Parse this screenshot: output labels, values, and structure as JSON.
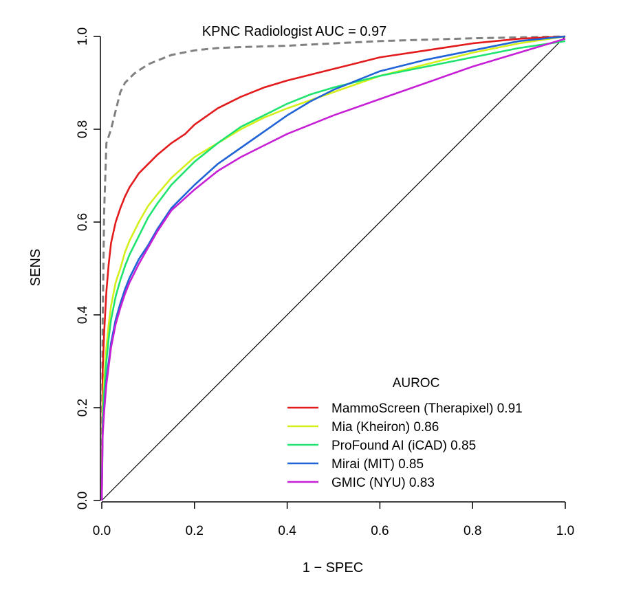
{
  "chart_data": {
    "type": "line",
    "title": "",
    "xlabel": "1 − SPEC",
    "ylabel": "SENS",
    "xlim": [
      0,
      1
    ],
    "ylim": [
      0,
      1
    ],
    "xticks": [
      "0.0",
      "0.2",
      "0.4",
      "0.6",
      "0.8",
      "1.0"
    ],
    "yticks": [
      "0.0",
      "0.2",
      "0.4",
      "0.6",
      "0.8",
      "1.0"
    ],
    "grid": false,
    "legend": {
      "title": "AUROC",
      "placement": "bottom-right"
    },
    "annotation": "KPNC Radiologist AUC = 0.97",
    "reference": {
      "style": "dashed",
      "color": "#808080",
      "x": [
        0,
        0.002,
        0.005,
        0.01,
        0.02,
        0.03,
        0.04,
        0.05,
        0.07,
        0.1,
        0.15,
        0.2,
        0.25,
        0.3,
        0.4,
        0.5,
        0.6,
        0.7,
        0.8,
        0.9,
        1.0
      ],
      "y": [
        0,
        0.38,
        0.62,
        0.77,
        0.8,
        0.84,
        0.88,
        0.9,
        0.92,
        0.94,
        0.96,
        0.97,
        0.975,
        0.977,
        0.98,
        0.985,
        0.99,
        0.993,
        0.996,
        0.998,
        1.0
      ]
    },
    "diagonal": {
      "color": "#000000",
      "x": [
        0,
        1
      ],
      "y": [
        0,
        1
      ]
    },
    "series": [
      {
        "name": "MammoScreen (Therapixel) 0.91",
        "color": "#e31a1c",
        "x": [
          0,
          0.002,
          0.005,
          0.01,
          0.015,
          0.02,
          0.03,
          0.04,
          0.05,
          0.06,
          0.07,
          0.08,
          0.1,
          0.12,
          0.15,
          0.18,
          0.2,
          0.25,
          0.3,
          0.35,
          0.4,
          0.5,
          0.6,
          0.7,
          0.8,
          0.9,
          1.0
        ],
        "y": [
          0,
          0.28,
          0.36,
          0.45,
          0.51,
          0.555,
          0.6,
          0.63,
          0.655,
          0.675,
          0.69,
          0.705,
          0.725,
          0.745,
          0.77,
          0.79,
          0.81,
          0.845,
          0.87,
          0.89,
          0.905,
          0.93,
          0.955,
          0.97,
          0.985,
          0.995,
          1.0
        ]
      },
      {
        "name": "Mia (Kheiron) 0.86",
        "color": "#d4ef1a",
        "x": [
          0,
          0.002,
          0.005,
          0.01,
          0.015,
          0.02,
          0.03,
          0.04,
          0.05,
          0.06,
          0.07,
          0.08,
          0.1,
          0.12,
          0.15,
          0.2,
          0.25,
          0.3,
          0.35,
          0.4,
          0.5,
          0.6,
          0.7,
          0.8,
          0.9,
          1.0
        ],
        "y": [
          0,
          0.2,
          0.26,
          0.33,
          0.38,
          0.42,
          0.47,
          0.5,
          0.535,
          0.56,
          0.58,
          0.6,
          0.635,
          0.66,
          0.695,
          0.74,
          0.77,
          0.8,
          0.825,
          0.845,
          0.88,
          0.915,
          0.94,
          0.965,
          0.985,
          1.0
        ]
      },
      {
        "name": "ProFound AI (iCAD) 0.85",
        "color": "#1ee36e",
        "x": [
          0,
          0.002,
          0.005,
          0.01,
          0.015,
          0.02,
          0.03,
          0.04,
          0.05,
          0.06,
          0.07,
          0.08,
          0.1,
          0.12,
          0.15,
          0.2,
          0.25,
          0.3,
          0.35,
          0.4,
          0.45,
          0.5,
          0.6,
          0.7,
          0.8,
          0.9,
          1.0
        ],
        "y": [
          0,
          0.17,
          0.23,
          0.3,
          0.35,
          0.39,
          0.44,
          0.475,
          0.505,
          0.53,
          0.55,
          0.57,
          0.61,
          0.64,
          0.68,
          0.73,
          0.77,
          0.805,
          0.83,
          0.855,
          0.875,
          0.89,
          0.915,
          0.935,
          0.955,
          0.975,
          0.99
        ]
      },
      {
        "name": "Mirai (MIT) 0.85",
        "color": "#1f63d6",
        "x": [
          0,
          0.002,
          0.005,
          0.01,
          0.015,
          0.02,
          0.03,
          0.04,
          0.05,
          0.06,
          0.07,
          0.08,
          0.1,
          0.12,
          0.15,
          0.2,
          0.25,
          0.3,
          0.35,
          0.4,
          0.45,
          0.5,
          0.6,
          0.7,
          0.8,
          0.9,
          1.0
        ],
        "y": [
          0,
          0.15,
          0.2,
          0.26,
          0.3,
          0.34,
          0.39,
          0.425,
          0.455,
          0.48,
          0.5,
          0.52,
          0.55,
          0.585,
          0.63,
          0.68,
          0.725,
          0.76,
          0.795,
          0.83,
          0.86,
          0.885,
          0.925,
          0.95,
          0.97,
          0.99,
          1.0
        ]
      },
      {
        "name": "GMIC (NYU) 0.83",
        "color": "#c61fd6",
        "x": [
          0,
          0.002,
          0.005,
          0.01,
          0.015,
          0.02,
          0.03,
          0.04,
          0.05,
          0.06,
          0.07,
          0.08,
          0.1,
          0.12,
          0.15,
          0.2,
          0.25,
          0.3,
          0.35,
          0.4,
          0.45,
          0.5,
          0.6,
          0.7,
          0.8,
          0.9,
          1.0
        ],
        "y": [
          0,
          0.14,
          0.19,
          0.25,
          0.29,
          0.33,
          0.38,
          0.415,
          0.445,
          0.47,
          0.49,
          0.51,
          0.545,
          0.58,
          0.625,
          0.67,
          0.71,
          0.74,
          0.765,
          0.79,
          0.81,
          0.83,
          0.865,
          0.9,
          0.935,
          0.965,
          0.995
        ]
      }
    ]
  }
}
